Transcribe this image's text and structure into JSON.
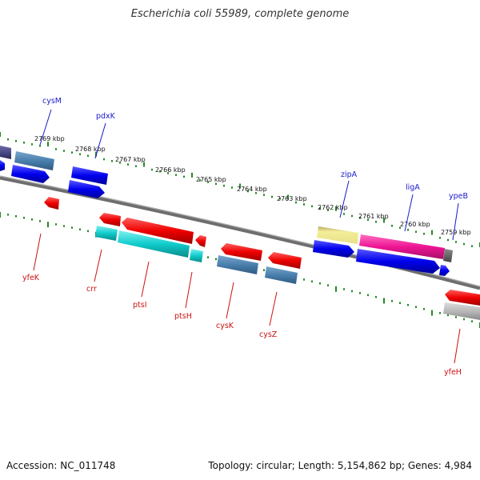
{
  "title": "Escherichia coli 55989, complete genome",
  "footer": {
    "accession": "Accession: NC_011748",
    "summary": "Topology: circular; Length: 5,154,862 bp; Genes: 4,984"
  },
  "colors": {
    "background": "#ffffff",
    "backbone": "#808080",
    "tick": "#228b22",
    "forward_label": "#1a1acd",
    "reverse_label": "#cc1111"
  },
  "tick_labels": [
    "2769 kbp",
    "2768 kbp",
    "2767 kbp",
    "2766 kbp",
    "2765 kbp",
    "2764 kbp",
    "2763 kbp",
    "2762 kbp",
    "2761 kbp",
    "2760 kbp",
    "2759 kbp"
  ],
  "forward_genes": [
    {
      "name": "cysM",
      "color": "#1a1acd"
    },
    {
      "name": "pdxK",
      "color": "#1a1acd"
    },
    {
      "name": "zipA",
      "color": "#1a1acd"
    },
    {
      "name": "ligA",
      "color": "#1a1acd"
    },
    {
      "name": "ypeB",
      "color": "#1a1acd"
    }
  ],
  "reverse_genes": [
    {
      "name": "yfeK",
      "color": "#cc1111"
    },
    {
      "name": "crr",
      "color": "#cc1111"
    },
    {
      "name": "ptsI",
      "color": "#cc1111"
    },
    {
      "name": "ptsH",
      "color": "#cc1111"
    },
    {
      "name": "cysK",
      "color": "#cc1111"
    },
    {
      "name": "cysZ",
      "color": "#cc1111"
    },
    {
      "name": "yfeH",
      "color": "#cc1111"
    }
  ]
}
